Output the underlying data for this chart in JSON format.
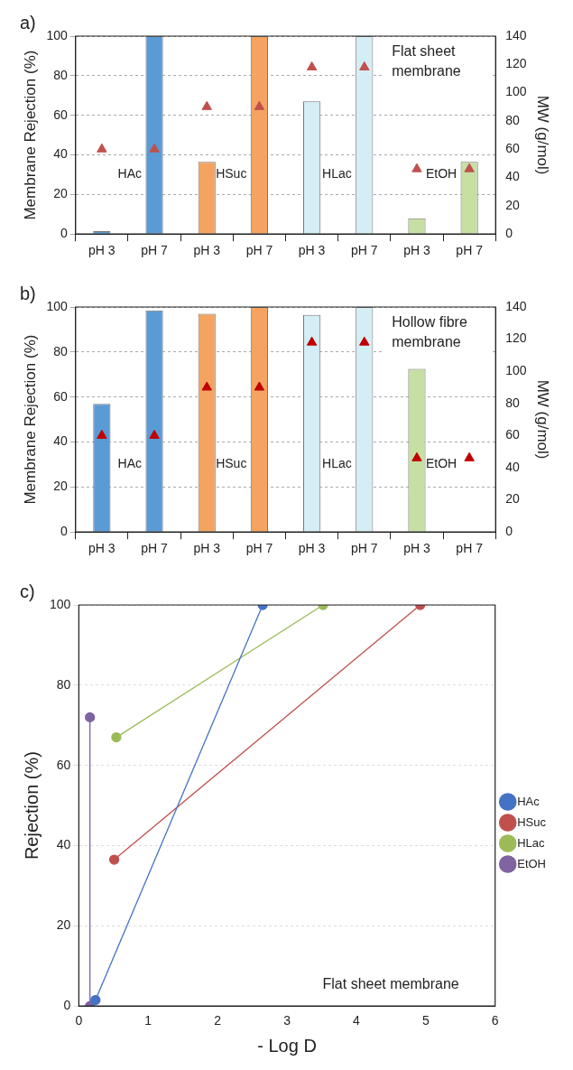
{
  "chart_data": [
    {
      "type": "bar",
      "ylabel": "Membrane Rejection (%)",
      "y2label": "MW (g/mol)",
      "categories": [
        "pH 3",
        "pH 7",
        "pH 3",
        "pH 7",
        "pH 3",
        "pH 7",
        "pH 3",
        "pH 7"
      ],
      "series": [
        {
          "type": "bar",
          "values": [
            1.5,
            100,
            36.5,
            100,
            67,
            100,
            8,
            36.5
          ],
          "colors": [
            "#5b9bd5",
            "#5b9bd5",
            "#f4a460",
            "#f4a460",
            "#d4eef5",
            "#d4eef5",
            "#c6e0a4",
            "#c6e0a4"
          ]
        },
        {
          "type": "scatter",
          "axis": "y2",
          "color": "#c0504d",
          "values": [
            60,
            60,
            90,
            90,
            118,
            118,
            46,
            46
          ]
        }
      ],
      "ylim": [
        0,
        100
      ],
      "yticks": [
        0,
        20,
        40,
        60,
        80,
        100
      ],
      "y2lim": [
        0,
        140
      ],
      "y2ticks": [
        0,
        20,
        40,
        60,
        80,
        100,
        120,
        140
      ],
      "grid": "y",
      "marker": "triangle",
      "legend": false,
      "annotations": [
        "a)",
        "HAc",
        "HSuc",
        "HLac",
        "EtOH",
        "Flat sheet membrane"
      ]
    },
    {
      "type": "bar",
      "ylabel": "Membrane Rejection (%)",
      "y2label": "MW (g/mol)",
      "categories": [
        "pH 3",
        "pH 7",
        "pH 3",
        "pH 7",
        "pH 3",
        "pH 7",
        "pH 3",
        "pH 7"
      ],
      "series": [
        {
          "type": "bar",
          "values": [
            57,
            98.5,
            97,
            100,
            96.5,
            100,
            72.5,
            0
          ],
          "colors": [
            "#5b9bd5",
            "#5b9bd5",
            "#f4a460",
            "#f4a460",
            "#d4eef5",
            "#d4eef5",
            "#c6e0a4",
            "#c6e0a4"
          ]
        },
        {
          "type": "scatter",
          "axis": "y2",
          "color": "#c00000",
          "values": [
            60,
            60,
            90,
            90,
            118,
            118,
            46,
            46
          ]
        }
      ],
      "ylim": [
        0,
        100
      ],
      "yticks": [
        0,
        20,
        40,
        60,
        80,
        100
      ],
      "y2lim": [
        0,
        140
      ],
      "y2ticks": [
        0,
        20,
        40,
        60,
        80,
        100,
        120,
        140
      ],
      "grid": "y",
      "marker": "triangle",
      "legend": false,
      "annotations": [
        "b)",
        "HAc",
        "HSuc",
        "HLac",
        "EtOH",
        "Hollow fibre membrane"
      ]
    },
    {
      "type": "line",
      "xlabel": "- Log D",
      "ylabel": "Rejection (%)",
      "series": [
        {
          "name": "HAc",
          "color": "#4472c4",
          "x": [
            0.24,
            2.65
          ],
          "values": [
            1.5,
            100
          ]
        },
        {
          "name": "HSuc",
          "color": "#c0504d",
          "x": [
            0.51,
            4.92
          ],
          "values": [
            36.5,
            100
          ]
        },
        {
          "name": "HLac",
          "color": "#9bbb59",
          "x": [
            0.54,
            3.52
          ],
          "values": [
            67,
            100
          ]
        },
        {
          "name": "EtOH",
          "color": "#8064a2",
          "x": [
            0.16,
            0.16
          ],
          "values": [
            0,
            72
          ]
        }
      ],
      "xlim": [
        0,
        6
      ],
      "xticks": [
        0,
        1,
        2,
        3,
        4,
        5,
        6
      ],
      "ylim": [
        0,
        100
      ],
      "yticks": [
        0,
        20,
        40,
        60,
        80,
        100
      ],
      "grid": "y",
      "marker": "circle",
      "legend": "right",
      "annotations": [
        "c)",
        "Flat sheet membrane"
      ]
    }
  ]
}
